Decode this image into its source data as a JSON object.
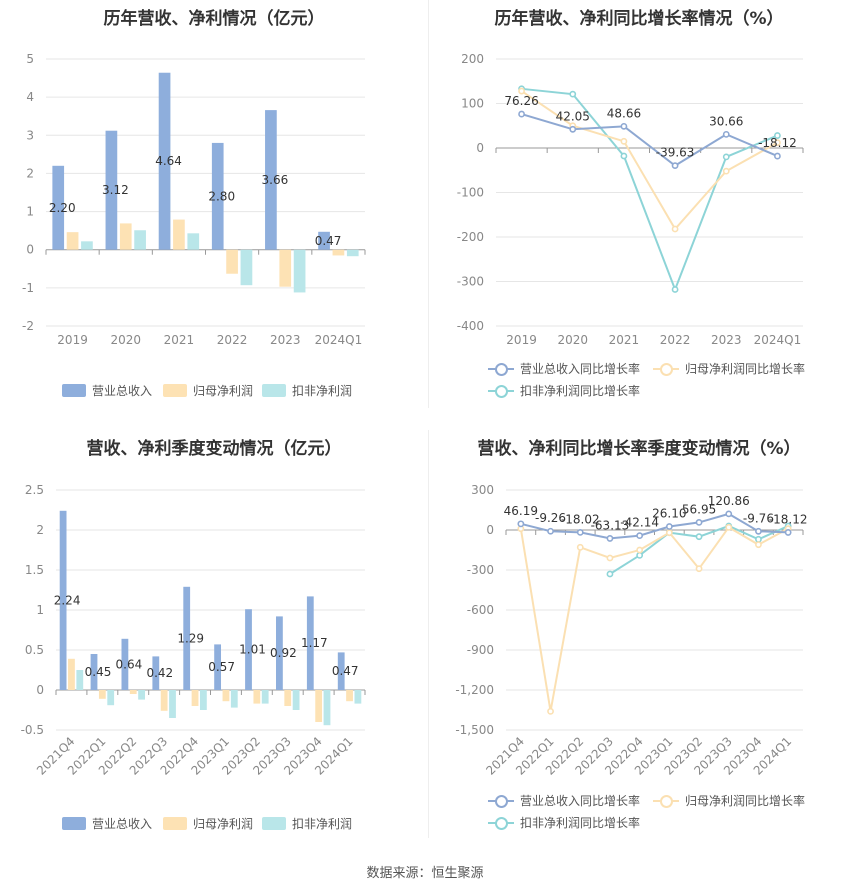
{
  "colors": {
    "revenue": "#8eaedc",
    "net_profit": "#fde2b4",
    "deducted_profit": "#b9e6e9",
    "revenue_line": "#8ea8d2",
    "net_line": "#fbe0b2",
    "deducted_line": "#8dd4d7",
    "grid": "#e6e6e6",
    "axis_text": "#888888"
  },
  "footer": "数据来源：恒生聚源",
  "chart_data": [
    {
      "id": "annual_amount",
      "type": "bar",
      "title": "历年营收、净利情况（亿元）",
      "categories": [
        "2019",
        "2020",
        "2021",
        "2022",
        "2023",
        "2024Q1"
      ],
      "ylim": [
        -2,
        5
      ],
      "yticks": [
        "5",
        "4",
        "3",
        "2",
        "1",
        "0",
        "-1",
        "-2"
      ],
      "ytick_values": [
        5,
        4,
        3,
        2,
        1,
        0,
        -1,
        -2
      ],
      "series": [
        {
          "name": "营业总收入",
          "values": [
            2.2,
            3.12,
            4.64,
            2.8,
            3.66,
            0.47
          ],
          "labels": [
            "2.20",
            "3.12",
            "4.64",
            "2.80",
            "3.66",
            "0.47"
          ]
        },
        {
          "name": "归母净利润",
          "values": [
            0.46,
            0.69,
            0.79,
            -0.63,
            -0.97,
            -0.15
          ]
        },
        {
          "name": "扣非净利润",
          "values": [
            0.22,
            0.51,
            0.43,
            -0.93,
            -1.12,
            -0.17
          ]
        }
      ],
      "legend": "bottom",
      "grid": true
    },
    {
      "id": "annual_growth",
      "type": "line",
      "title": "历年营收、净利同比增长率情况（%）",
      "categories": [
        "2019",
        "2020",
        "2021",
        "2022",
        "2023",
        "2024Q1"
      ],
      "ylim": [
        -400,
        200
      ],
      "yticks": [
        "200",
        "100",
        "0",
        "-100",
        "-200",
        "-300",
        "-400"
      ],
      "ytick_values": [
        200,
        100,
        0,
        -100,
        -200,
        -300,
        -400
      ],
      "series": [
        {
          "name": "营业总收入同比增长率",
          "values": [
            76.26,
            42.05,
            48.66,
            -39.63,
            30.66,
            -18.12
          ],
          "labels": [
            "76.26",
            "42.05",
            "48.66",
            "-39.63",
            "30.66",
            "-18.12"
          ]
        },
        {
          "name": "归母净利润同比增长率",
          "values": [
            128,
            50,
            15,
            -182,
            -52,
            12
          ]
        },
        {
          "name": "扣非净利润同比增长率",
          "values": [
            133,
            121,
            -18,
            -318,
            -20,
            28
          ]
        }
      ],
      "legend": "bottom",
      "grid": true
    },
    {
      "id": "quarterly_amount",
      "type": "bar",
      "title": "营收、净利季度变动情况（亿元）",
      "categories": [
        "2021Q4",
        "2022Q1",
        "2022Q2",
        "2022Q3",
        "2022Q4",
        "2023Q1",
        "2023Q2",
        "2023Q3",
        "2023Q4",
        "2024Q1"
      ],
      "ylim": [
        -0.5,
        2.5
      ],
      "yticks": [
        "2.5",
        "2",
        "1.5",
        "1",
        "0.5",
        "0",
        "-0.5"
      ],
      "ytick_values": [
        2.5,
        2,
        1.5,
        1,
        0.5,
        0,
        -0.5
      ],
      "series": [
        {
          "name": "营业总收入",
          "values": [
            2.24,
            0.45,
            0.64,
            0.42,
            1.29,
            0.57,
            1.01,
            0.92,
            1.17,
            0.47
          ],
          "labels": [
            "2.24",
            "0.45",
            "0.64",
            "0.42",
            "1.29",
            "0.57",
            "1.01",
            "0.92",
            "1.17",
            "0.47"
          ]
        },
        {
          "name": "归母净利润",
          "values": [
            0.39,
            -0.11,
            -0.05,
            -0.26,
            -0.2,
            -0.14,
            -0.17,
            -0.2,
            -0.4,
            -0.14
          ]
        },
        {
          "name": "扣非净利润",
          "values": [
            0.25,
            -0.19,
            -0.12,
            -0.35,
            -0.25,
            -0.22,
            -0.17,
            -0.25,
            -0.44,
            -0.17
          ]
        }
      ],
      "legend": "bottom",
      "grid": true
    },
    {
      "id": "quarterly_growth",
      "type": "line",
      "title": "营收、净利同比增长率季度变动情况（%）",
      "categories": [
        "2021Q4",
        "2022Q1",
        "2022Q2",
        "2022Q3",
        "2022Q4",
        "2023Q1",
        "2023Q2",
        "2023Q3",
        "2023Q4",
        "2024Q1"
      ],
      "ylim": [
        -1500,
        300
      ],
      "yticks": [
        "300",
        "0",
        "-300",
        "-600",
        "-900",
        "-1,200",
        "-1,500"
      ],
      "ytick_values": [
        300,
        0,
        -300,
        -600,
        -900,
        -1200,
        -1500
      ],
      "series": [
        {
          "name": "营业总收入同比增长率",
          "values": [
            46.19,
            -9.26,
            -18.02,
            -63.13,
            -42.14,
            26.1,
            56.95,
            120.86,
            -9.76,
            -18.12
          ],
          "labels": [
            "46.19",
            "-9.26",
            "-18.02",
            "-63.13",
            "-42.14",
            "26.10",
            "56.95",
            "120.86",
            "-9.76",
            "-18.12"
          ]
        },
        {
          "name": "归母净利润同比增长率",
          "values": [
            10,
            -1360,
            -130,
            -210,
            -150,
            -20,
            -290,
            20,
            -110,
            10
          ]
        },
        {
          "name": "扣非净利润同比增长率",
          "values": [
            null,
            null,
            null,
            -330,
            -190,
            -20,
            -50,
            30,
            -70,
            30
          ]
        }
      ],
      "legend": "bottom",
      "grid": true
    }
  ]
}
